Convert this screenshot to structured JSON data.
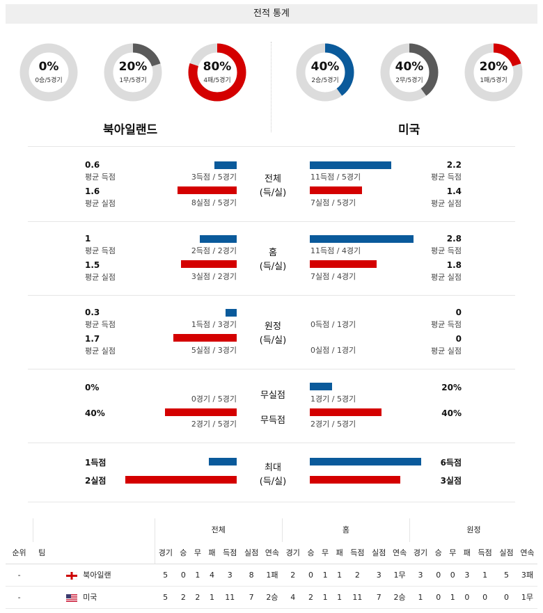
{
  "header": {
    "title": "전적 통계"
  },
  "colors": {
    "win_blue": "#0a5a9b",
    "loss_red": "#d40000",
    "draw_gray": "#5a5a5a",
    "track": "#dcdcdc"
  },
  "donuts": [
    {
      "pct": "0%",
      "sub": "0승/5경기",
      "fill": 0.0,
      "color": "#0a5a9b"
    },
    {
      "pct": "20%",
      "sub": "1무/5경기",
      "fill": 0.2,
      "color": "#5a5a5a"
    },
    {
      "pct": "80%",
      "sub": "4패/5경기",
      "fill": 0.8,
      "color": "#d40000"
    },
    {
      "pct": "40%",
      "sub": "2승/5경기",
      "fill": 0.4,
      "color": "#0a5a9b"
    },
    {
      "pct": "40%",
      "sub": "2무/5경기",
      "fill": 0.4,
      "color": "#5a5a5a"
    },
    {
      "pct": "20%",
      "sub": "1패/5경기",
      "fill": 0.2,
      "color": "#d40000"
    }
  ],
  "teams": {
    "left": "북아일랜드",
    "right": "미국"
  },
  "labels": {
    "avg_scored": "평균 득점",
    "avg_conceded": "평균 실점"
  },
  "sections": {
    "overall": {
      "center_top": "전체",
      "center_bottom": "(득/실)",
      "left": {
        "scored": "0.6",
        "scored_count": "3득점 / 5경기",
        "scored_bar": 0.6,
        "conceded": "1.6",
        "conceded_count": "8실점 / 5경기",
        "conceded_bar": 1.6
      },
      "right": {
        "scored": "2.2",
        "scored_count": "11득점 / 5경기",
        "scored_bar": 2.2,
        "conceded": "1.4",
        "conceded_count": "7실점 / 5경기",
        "conceded_bar": 1.4
      }
    },
    "home": {
      "center_top": "홈",
      "center_bottom": "(득/실)",
      "left": {
        "scored": "1",
        "scored_count": "2득점 / 2경기",
        "scored_bar": 1,
        "conceded": "1.5",
        "conceded_count": "3실점 / 2경기",
        "conceded_bar": 1.5
      },
      "right": {
        "scored": "2.8",
        "scored_count": "11득점 / 4경기",
        "scored_bar": 2.8,
        "conceded": "1.8",
        "conceded_count": "7실점 / 4경기",
        "conceded_bar": 1.8
      }
    },
    "away": {
      "center_top": "원정",
      "center_bottom": "(득/실)",
      "left": {
        "scored": "0.3",
        "scored_count": "1득점 / 3경기",
        "scored_bar": 0.3,
        "conceded": "1.7",
        "conceded_count": "5실점 / 3경기",
        "conceded_bar": 1.7
      },
      "right": {
        "scored": "0",
        "scored_count": "0득점 / 1경기",
        "scored_bar": 0,
        "conceded": "0",
        "conceded_count": "0실점 / 1경기",
        "conceded_bar": 0
      }
    },
    "clean": {
      "center_top": "무실점",
      "center_bottom": "무득점",
      "left": {
        "clean_pct": "0%",
        "clean_count": "0경기 / 5경기",
        "clean_bar": 0,
        "fail_pct": "40%",
        "fail_count": "2경기 / 5경기",
        "fail_bar": 2
      },
      "right": {
        "clean_pct": "20%",
        "clean_count": "1경기 / 5경기",
        "clean_bar": 1,
        "fail_pct": "40%",
        "fail_count": "2경기 / 5경기",
        "fail_bar": 2
      }
    },
    "max": {
      "center_top": "최대",
      "center_bottom": "(득/실)",
      "left": {
        "scored": "1득점",
        "scored_bar": 1,
        "conceded": "2실점",
        "conceded_bar": 2
      },
      "right": {
        "scored": "6득점",
        "scored_bar": 6,
        "conceded": "3실점",
        "conceded_bar": 3
      }
    }
  },
  "table": {
    "groups": [
      "전체",
      "홈",
      "원정"
    ],
    "col_rank": "순위",
    "col_team": "팀",
    "cols": [
      "경기",
      "승",
      "무",
      "패",
      "득점",
      "실점",
      "연속"
    ],
    "rows": [
      {
        "rank": "-",
        "team": "북아일랜",
        "flag": "england",
        "overall": [
          "5",
          "0",
          "1",
          "4",
          "3",
          "8",
          "1패"
        ],
        "home": [
          "2",
          "0",
          "1",
          "1",
          "2",
          "3",
          "1무"
        ],
        "away": [
          "3",
          "0",
          "0",
          "3",
          "1",
          "5",
          "3패"
        ]
      },
      {
        "rank": "-",
        "team": "미국",
        "flag": "usa",
        "overall": [
          "5",
          "2",
          "2",
          "1",
          "11",
          "7",
          "2승"
        ],
        "home": [
          "4",
          "2",
          "1",
          "1",
          "11",
          "7",
          "2승"
        ],
        "away": [
          "1",
          "0",
          "1",
          "0",
          "0",
          "0",
          "1무"
        ]
      }
    ]
  }
}
